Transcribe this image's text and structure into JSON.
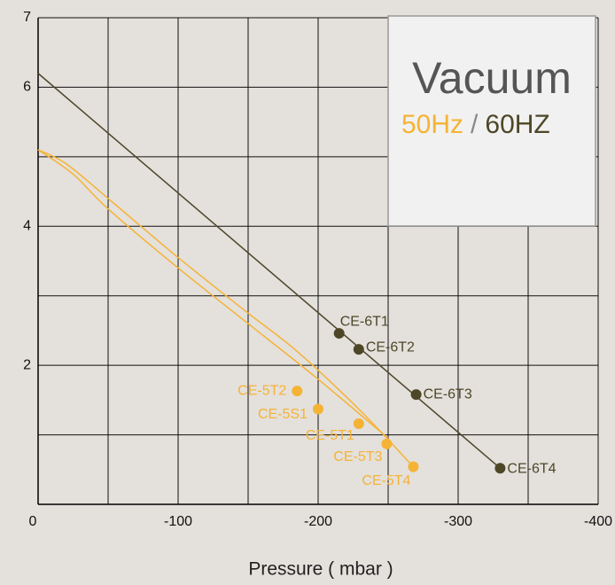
{
  "chart_data": {
    "type": "line",
    "legend_title": "Vacuum",
    "legend_separator": "/",
    "xlabel": "Pressure ( mbar )",
    "xlim": [
      0,
      -400
    ],
    "xticks": [
      0,
      -100,
      -200,
      -300,
      -400
    ],
    "xminor": [
      -50,
      -150,
      -250,
      -350
    ],
    "ylim": [
      0,
      7
    ],
    "yticks": [
      2,
      4,
      6,
      7
    ],
    "yminor": [
      1,
      3,
      5
    ],
    "grid": true,
    "series": [
      {
        "name": "50Hz",
        "color": "#f5b335",
        "curves": [
          {
            "x": [
              0,
              -20,
              -50,
              -100,
              -150,
              -185,
              -230,
              -268
            ],
            "y": [
              5.1,
              4.9,
              4.4,
              3.55,
              2.75,
              2.2,
              1.35,
              0.54
            ]
          },
          {
            "x": [
              0,
              -25,
              -50,
              -100,
              -150,
              -200,
              -250
            ],
            "y": [
              5.1,
              4.75,
              4.25,
              3.4,
              2.6,
              1.8,
              0.95
            ]
          }
        ],
        "points": {
          "labels": [
            "CE-5T2",
            "CE-5S1",
            "CE-5T1",
            "CE-5T3",
            "CE-5T4"
          ],
          "x": [
            -185,
            -200,
            -229,
            -249,
            -268
          ],
          "y": [
            1.63,
            1.37,
            1.16,
            0.87,
            0.54
          ]
        }
      },
      {
        "name": "60HZ",
        "color": "#4d4727",
        "curves": [
          {
            "x": [
              0,
              -330
            ],
            "y": [
              6.2,
              0.52
            ]
          }
        ],
        "points": {
          "labels": [
            "CE-6T1",
            "CE-6T2",
            "CE-6T3",
            "CE-6T4"
          ],
          "x": [
            -215,
            -229,
            -270,
            -330
          ],
          "y": [
            2.46,
            2.23,
            1.58,
            0.52
          ]
        }
      }
    ]
  }
}
